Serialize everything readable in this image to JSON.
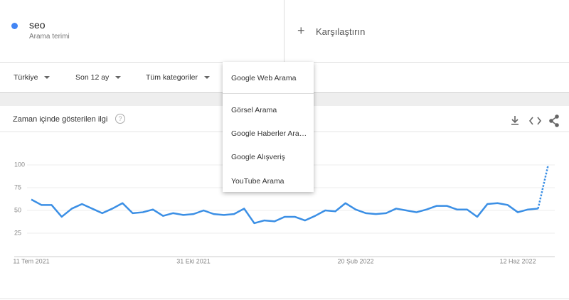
{
  "search_term": {
    "term": "seo",
    "label": "Arama terimi"
  },
  "compare": "Karşılaştırın",
  "filters": [
    "Türkiye",
    "Son 12 ay",
    "Tüm kategoriler"
  ],
  "search_type_menu": [
    "Google Web Arama",
    "Görsel Arama",
    "Google Haberler Ara…",
    "Google Alışveriş",
    "YouTube Arama"
  ],
  "chart_data": {
    "type": "line",
    "title": "Zaman içinde gösterilen ilgi",
    "categories": [
      "11 Tem 2021",
      null,
      null,
      null,
      null,
      null,
      null,
      null,
      null,
      null,
      null,
      null,
      null,
      null,
      null,
      null,
      "31 Eki 2021",
      null,
      null,
      null,
      null,
      null,
      null,
      null,
      null,
      null,
      null,
      null,
      null,
      null,
      null,
      null,
      "20 Şub 2022",
      null,
      null,
      null,
      null,
      null,
      null,
      null,
      null,
      null,
      null,
      null,
      null,
      null,
      null,
      null,
      "12 Haz 2022",
      null,
      null,
      null
    ],
    "values": [
      62,
      56,
      56,
      43,
      52,
      57,
      52,
      47,
      52,
      58,
      47,
      48,
      51,
      44,
      47,
      45,
      46,
      50,
      46,
      45,
      46,
      52,
      36,
      39,
      38,
      43,
      43,
      39,
      44,
      50,
      49,
      58,
      51,
      47,
      46,
      47,
      52,
      50,
      48,
      51,
      55,
      55,
      51,
      51,
      43,
      57,
      58,
      56,
      48,
      51,
      52,
      100
    ],
    "color": "#3b8fe5",
    "ylim": [
      0,
      100
    ],
    "yticks": [
      25,
      50,
      75,
      100
    ],
    "grid": true,
    "dotted_last_segment": true
  }
}
